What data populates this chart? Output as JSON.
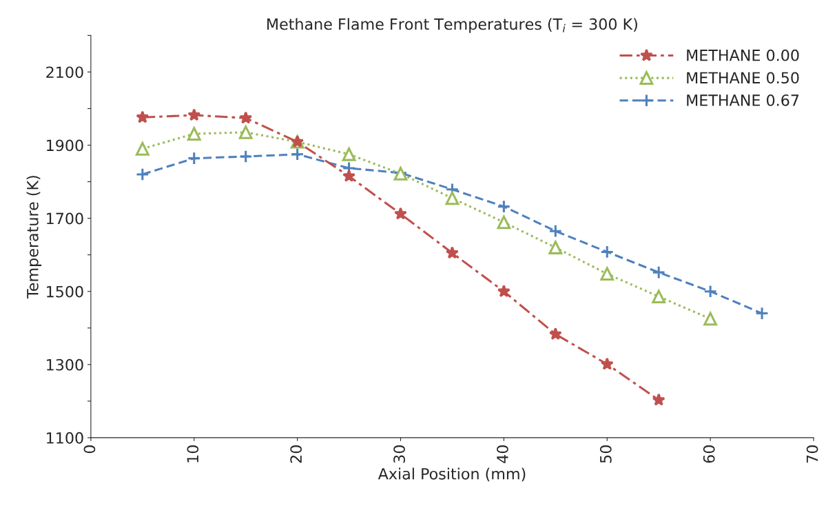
{
  "chart_data": {
    "type": "line",
    "title": "Methane Flame Front Temperatures (T$_{i}$ = 300 K)",
    "xlabel": "Axial Position (mm)",
    "ylabel": "Temperature (K)",
    "xlim": [
      0,
      70
    ],
    "xticks": [
      0,
      10,
      20,
      30,
      40,
      50,
      60,
      70
    ],
    "ylim": [
      1100,
      2200
    ],
    "yticks": [
      1100,
      {
        "value": 1200,
        "label": null
      },
      1300,
      {
        "value": 1400,
        "label": null
      },
      1500,
      {
        "value": 1600,
        "label": null
      },
      1700,
      {
        "value": 1800,
        "label": null
      },
      1900,
      {
        "value": 2000,
        "label": null
      },
      2100,
      {
        "value": 2200,
        "label": null
      }
    ],
    "grid": false,
    "legend": "top right",
    "series": [
      {
        "name": "METHANE 0.00",
        "color": "#c0504d",
        "marker": "star",
        "line_style": "dashdot",
        "x": [
          5,
          10,
          15,
          20,
          25,
          30,
          35,
          40,
          45,
          50,
          55
        ],
        "values": [
          1976,
          1982,
          1974,
          1909,
          1815,
          1712,
          1605,
          1500,
          1383,
          1301,
          1203
        ]
      },
      {
        "name": "METHANE 0.50",
        "color": "#9bbb59",
        "marker": "triangle",
        "line_style": "dotted",
        "x": [
          5,
          10,
          15,
          20,
          25,
          30,
          35,
          40,
          45,
          50,
          55,
          60
        ],
        "values": [
          1890,
          1931,
          1935,
          1909,
          1875,
          1822,
          1755,
          1689,
          1620,
          1548,
          1486,
          1425
        ]
      },
      {
        "name": "METHANE 0.67",
        "color": "#4f81bd",
        "marker": "cross",
        "line_style": "dashed",
        "x": [
          5,
          10,
          15,
          20,
          25,
          30,
          35,
          40,
          45,
          50,
          55,
          60,
          65
        ],
        "values": [
          1820,
          1864,
          1869,
          1875,
          1837,
          1824,
          1779,
          1732,
          1665,
          1608,
          1552,
          1500,
          1440
        ]
      }
    ]
  }
}
